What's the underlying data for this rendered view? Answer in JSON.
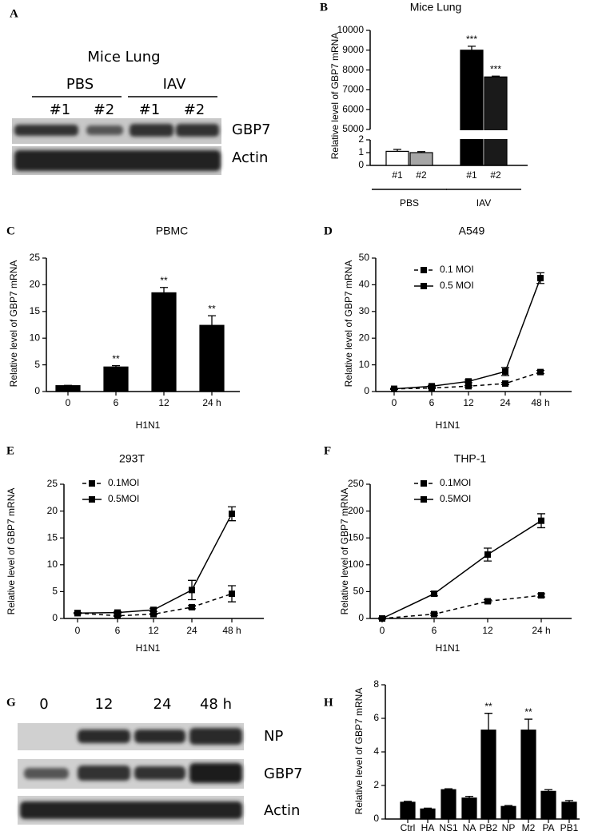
{
  "blots": [
    {
      "panel": "A",
      "title": "Mice Lung",
      "groups": [
        {
          "label": "PBS",
          "lanes": [
            "#1",
            "#2"
          ]
        },
        {
          "label": "IAV",
          "lanes": [
            "#1",
            "#2"
          ]
        }
      ],
      "rows": [
        "GBP7",
        "Actin"
      ]
    },
    {
      "panel": "G",
      "lanes": [
        "0",
        "12",
        "24",
        "48 h"
      ],
      "rows": [
        "NP",
        "GBP7",
        "Actin"
      ]
    }
  ],
  "chart_data": [
    {
      "type": "bar",
      "panel": "B",
      "title": "Mice Lung",
      "ylabel": "Relative level of GBP7 mRNA",
      "categories": [
        "#1",
        "#2",
        "#1",
        "#2"
      ],
      "values": [
        1.1,
        1.0,
        9000,
        7650
      ],
      "errors": [
        0.15,
        0.08,
        200,
        40
      ],
      "colors": [
        "#ffffff",
        "#a6a6a6",
        "#000000",
        "#1a1a1a"
      ],
      "annotations": [
        null,
        null,
        "***",
        "***"
      ],
      "groups": [
        {
          "label": "PBS",
          "span": [
            0,
            1
          ]
        },
        {
          "label": "IAV",
          "span": [
            2,
            3
          ]
        }
      ],
      "ylim": [
        0,
        10000
      ],
      "ybreak": [
        2,
        5000
      ],
      "yticks": [
        0,
        1,
        2,
        5000,
        6000,
        7000,
        8000,
        9000,
        10000
      ]
    },
    {
      "type": "bar",
      "panel": "C",
      "title": "PBMC",
      "ylabel": "Relative level of GBP7 mRNA",
      "xlabel": "H1N1",
      "categories": [
        "0",
        "6",
        "12",
        "24 h"
      ],
      "values": [
        1.1,
        4.6,
        18.5,
        12.4
      ],
      "errors": [
        0.05,
        0.25,
        1.0,
        1.8
      ],
      "color": "#000000",
      "annotations": [
        null,
        "**",
        "**",
        "**"
      ],
      "ylim": [
        0,
        25
      ],
      "yticks": [
        0,
        5,
        10,
        15,
        20,
        25
      ]
    },
    {
      "type": "line",
      "panel": "D",
      "title": "A549",
      "ylabel": "Relative level of GBP7 mRNA",
      "xlabel": "H1N1",
      "categories": [
        "0",
        "6",
        "12",
        "24",
        "48 h"
      ],
      "series": [
        {
          "name": "0.1 MOI",
          "color": "#000000",
          "dashed": true,
          "values": [
            1,
            1.3,
            2,
            3,
            7.3
          ],
          "errors": [
            0.2,
            0.2,
            0.3,
            0.4,
            0.6
          ]
        },
        {
          "name": "0.5 MOI",
          "color": "#000000",
          "dashed": false,
          "values": [
            1,
            2,
            3.8,
            7.5,
            42.5
          ],
          "errors": [
            0.2,
            0.3,
            0.5,
            1.5,
            2
          ]
        }
      ],
      "ylim": [
        0,
        50
      ],
      "yticks": [
        0,
        10,
        20,
        30,
        40,
        50
      ]
    },
    {
      "type": "line",
      "panel": "E",
      "title": "293T",
      "ylabel": "Relative level of GBP7 mRNA",
      "xlabel": "H1N1",
      "categories": [
        "0",
        "6",
        "12",
        "24",
        "48 h"
      ],
      "series": [
        {
          "name": "0.1MOI",
          "color": "#000000",
          "dashed": true,
          "values": [
            1,
            0.5,
            0.8,
            2.1,
            4.6
          ],
          "errors": [
            0.1,
            0.1,
            0.1,
            0.3,
            1.5
          ]
        },
        {
          "name": "0.5MOI",
          "color": "#000000",
          "dashed": false,
          "values": [
            1,
            1.1,
            1.6,
            5.3,
            19.5
          ],
          "errors": [
            0.1,
            0.2,
            0.3,
            1.8,
            1.3
          ]
        }
      ],
      "ylim": [
        0,
        25
      ],
      "yticks": [
        0,
        5,
        10,
        15,
        20,
        25
      ]
    },
    {
      "type": "line",
      "panel": "F",
      "title": "THP-1",
      "ylabel": "Relative level of GBP7 mRNA",
      "xlabel": "H1N1",
      "categories": [
        "0",
        "6",
        "12",
        "24 h"
      ],
      "series": [
        {
          "name": "0.1MOI",
          "color": "#000000",
          "dashed": true,
          "values": [
            0,
            8,
            32,
            43
          ],
          "errors": [
            1,
            2,
            3,
            3
          ]
        },
        {
          "name": "0.5MOI",
          "color": "#000000",
          "dashed": false,
          "values": [
            0,
            46,
            119,
            182
          ],
          "errors": [
            1,
            4,
            12,
            13
          ]
        }
      ],
      "ylim": [
        0,
        250
      ],
      "yticks": [
        0,
        50,
        100,
        150,
        200,
        250
      ]
    },
    {
      "type": "bar",
      "panel": "H",
      "ylabel": "Relative level of GBP7 mRNA",
      "categories": [
        "Ctrl",
        "HA",
        "NS1",
        "NA",
        "PB2",
        "NP",
        "M2",
        "PA",
        "PB1"
      ],
      "values": [
        1.0,
        0.6,
        1.75,
        1.25,
        5.3,
        0.75,
        5.3,
        1.65,
        1.0
      ],
      "errors": [
        0.05,
        0.05,
        0.05,
        0.1,
        1.0,
        0.05,
        0.65,
        0.1,
        0.1
      ],
      "color": "#000000",
      "annotations": [
        null,
        null,
        null,
        null,
        "**",
        null,
        "**",
        null,
        null
      ],
      "ylim": [
        0,
        8
      ],
      "yticks": [
        0,
        2,
        4,
        6,
        8
      ]
    }
  ]
}
